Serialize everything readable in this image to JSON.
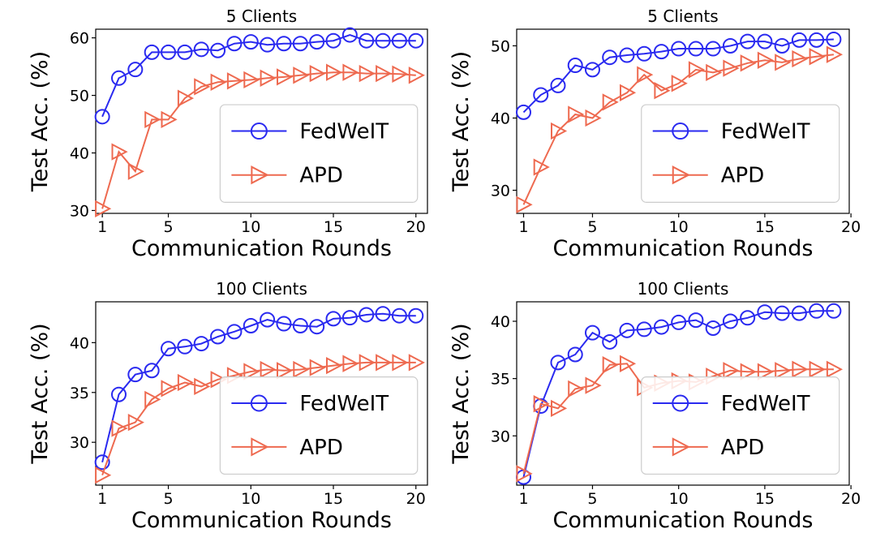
{
  "chart_data": [
    {
      "type": "line",
      "title": "5 Clients",
      "xlabel": "Communication Rounds",
      "ylabel": "Test Acc. (%)",
      "xlim": [
        0.6,
        20.7
      ],
      "ylim": [
        29.5,
        61.5
      ],
      "xticks": [
        1,
        5,
        10,
        15,
        20
      ],
      "yticks": [
        30,
        40,
        50,
        60
      ],
      "legend_position": "lower-right",
      "series": [
        {
          "name": "FedWeIT",
          "color": "#2a2af0",
          "marker": "circle",
          "x": [
            1,
            2,
            3,
            4,
            5,
            6,
            7,
            8,
            9,
            10,
            11,
            12,
            13,
            14,
            15,
            16,
            17,
            18,
            19,
            20
          ],
          "y": [
            46.3,
            53.0,
            54.5,
            57.5,
            57.5,
            57.5,
            58.0,
            57.8,
            59.0,
            59.3,
            58.8,
            59.0,
            59.0,
            59.3,
            59.5,
            60.5,
            59.5,
            59.5,
            59.5,
            59.5
          ]
        },
        {
          "name": "APD",
          "color": "#ee6a50",
          "marker": "triangle-right",
          "x": [
            1,
            2,
            3,
            4,
            5,
            6,
            7,
            8,
            9,
            10,
            11,
            12,
            13,
            14,
            15,
            16,
            17,
            18,
            19,
            20
          ],
          "y": [
            30.3,
            40.2,
            36.8,
            45.8,
            45.8,
            49.5,
            51.5,
            52.3,
            52.5,
            52.7,
            53.0,
            53.2,
            53.5,
            53.8,
            54.0,
            54.0,
            53.8,
            53.8,
            53.7,
            53.5
          ]
        }
      ]
    },
    {
      "type": "line",
      "title": "5 Clients",
      "xlabel": "Communication Rounds",
      "ylabel": "Test Acc. (%)",
      "xlim": [
        0.6,
        19.9
      ],
      "ylim": [
        26.8,
        52.3
      ],
      "xticks": [
        1,
        5,
        10,
        15,
        20
      ],
      "yticks": [
        30,
        40,
        50
      ],
      "legend_position": "lower-right",
      "series": [
        {
          "name": "FedWeIT",
          "color": "#2a2af0",
          "marker": "circle",
          "x": [
            1,
            2,
            3,
            4,
            5,
            6,
            7,
            8,
            9,
            10,
            11,
            12,
            13,
            14,
            15,
            16,
            17,
            18,
            19
          ],
          "y": [
            40.8,
            43.2,
            44.5,
            47.3,
            46.7,
            48.4,
            48.7,
            48.9,
            49.2,
            49.6,
            49.6,
            49.6,
            50.0,
            50.6,
            50.6,
            50.0,
            50.8,
            50.8,
            50.9
          ]
        },
        {
          "name": "APD",
          "color": "#ee6a50",
          "marker": "triangle-right",
          "x": [
            1,
            2,
            3,
            4,
            5,
            6,
            7,
            8,
            9,
            10,
            11,
            12,
            13,
            14,
            15,
            16,
            17,
            18,
            19
          ],
          "y": [
            28.0,
            33.2,
            38.2,
            40.5,
            40.0,
            42.2,
            43.5,
            46.0,
            43.8,
            44.8,
            46.7,
            46.3,
            46.9,
            47.6,
            48.0,
            47.7,
            48.2,
            48.5,
            48.8
          ]
        }
      ]
    },
    {
      "type": "line",
      "title": "100 Clients",
      "xlabel": "Communication Rounds",
      "ylabel": "Test Acc. (%)",
      "xlim": [
        0.6,
        20.7
      ],
      "ylim": [
        25.7,
        44.1
      ],
      "xticks": [
        1,
        5,
        10,
        15,
        20
      ],
      "yticks": [
        30,
        35,
        40
      ],
      "legend_position": "lower-right",
      "series": [
        {
          "name": "FedWeIT",
          "color": "#2a2af0",
          "marker": "circle",
          "x": [
            1,
            2,
            3,
            4,
            5,
            6,
            7,
            8,
            9,
            10,
            11,
            12,
            13,
            14,
            15,
            16,
            17,
            18,
            19,
            20
          ],
          "y": [
            28.0,
            34.8,
            36.8,
            37.2,
            39.4,
            39.6,
            39.9,
            40.6,
            41.1,
            41.7,
            42.3,
            41.9,
            41.7,
            41.6,
            42.4,
            42.5,
            42.8,
            42.9,
            42.7,
            42.7
          ]
        },
        {
          "name": "APD",
          "color": "#ee6a50",
          "marker": "triangle-right",
          "x": [
            1,
            2,
            3,
            4,
            5,
            6,
            7,
            8,
            9,
            10,
            11,
            12,
            13,
            14,
            15,
            16,
            17,
            18,
            19,
            20
          ],
          "y": [
            26.7,
            31.4,
            32.0,
            34.3,
            35.4,
            36.0,
            35.6,
            36.3,
            36.7,
            37.1,
            37.3,
            37.2,
            37.3,
            37.5,
            37.7,
            37.9,
            38.0,
            38.0,
            38.0,
            38.0
          ]
        }
      ]
    },
    {
      "type": "line",
      "title": "100 Clients",
      "xlabel": "Communication Rounds",
      "ylabel": "Test Acc. (%)",
      "xlim": [
        0.6,
        19.9
      ],
      "ylim": [
        25.7,
        41.7
      ],
      "xticks": [
        1,
        5,
        10,
        15,
        20
      ],
      "yticks": [
        30,
        35,
        40
      ],
      "legend_position": "lower-right",
      "series": [
        {
          "name": "FedWeIT",
          "color": "#2a2af0",
          "marker": "circle",
          "x": [
            1,
            2,
            3,
            4,
            5,
            6,
            7,
            8,
            9,
            10,
            11,
            12,
            13,
            14,
            15,
            16,
            17,
            18,
            19
          ],
          "y": [
            26.4,
            32.6,
            36.4,
            37.1,
            39.0,
            38.2,
            39.2,
            39.3,
            39.5,
            39.9,
            40.1,
            39.4,
            40.0,
            40.3,
            40.8,
            40.7,
            40.7,
            40.9,
            40.9
          ]
        },
        {
          "name": "APD",
          "color": "#ee6a50",
          "marker": "triangle-right",
          "x": [
            1,
            2,
            3,
            4,
            5,
            6,
            7,
            8,
            9,
            10,
            11,
            12,
            13,
            14,
            15,
            16,
            17,
            18,
            19
          ],
          "y": [
            26.7,
            32.8,
            32.4,
            34.1,
            34.4,
            36.2,
            36.3,
            34.2,
            34.6,
            34.8,
            34.7,
            35.2,
            35.7,
            35.6,
            35.6,
            35.7,
            35.8,
            35.8,
            35.8
          ]
        }
      ]
    }
  ]
}
